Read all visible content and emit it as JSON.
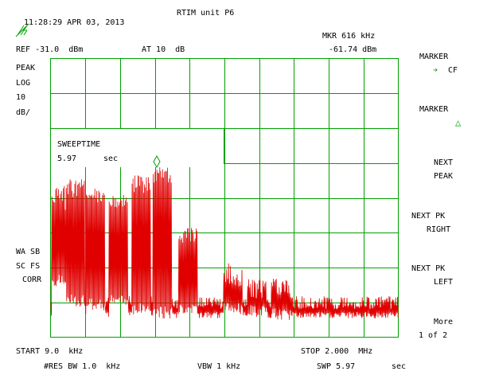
{
  "header": {
    "timestamp": "11:28:29 APR 03, 2013",
    "title": "RTIM unit P6",
    "logo_icon": "hp-logo-icon"
  },
  "marker_readout": {
    "label": "MKR 616 kHz",
    "value": "-61.74 dBm"
  },
  "reference": {
    "ref": "REF -31.0  dBm",
    "atten": "AT 10  dB"
  },
  "left_annotations": {
    "detector": "PEAK",
    "scale_type": "LOG",
    "scale_value": "10",
    "scale_unit": "dB/",
    "wa_sb": "WA SB",
    "sc_fs": "SC FS",
    "corr": "CORR"
  },
  "popup": {
    "title": "SWEEPTIME",
    "value": "5.97",
    "unit": "sec"
  },
  "softkeys": {
    "marker_cf_line1": "MARKER",
    "marker_cf_arrow": "➔",
    "marker_cf_line2": "CF",
    "marker_delta_line1": "MARKER",
    "marker_delta_glyph": "△",
    "next_peak_line1": "NEXT",
    "next_peak_line2": "PEAK",
    "next_pk_right_line1": "NEXT PK",
    "next_pk_right_line2": "RIGHT",
    "next_pk_left_line1": "NEXT PK",
    "next_pk_left_line2": "LEFT",
    "more_line1": "More",
    "more_line2": "1 of 2"
  },
  "footer": {
    "start": "START 9.0  kHz",
    "stop": "STOP 2.000  MHz",
    "rbw": "#RES BW 1.0  kHz",
    "vbw": "VBW 1 kHz",
    "swp": "SWP 5.97",
    "swp_unit": "sec"
  },
  "colors": {
    "grid": "#00a000",
    "trace": "#e00000",
    "text": "#000000",
    "marker": "#00a000"
  },
  "trace": {
    "marker_frequency_khz": 616,
    "marker_level_dbm": -61.74
  }
}
